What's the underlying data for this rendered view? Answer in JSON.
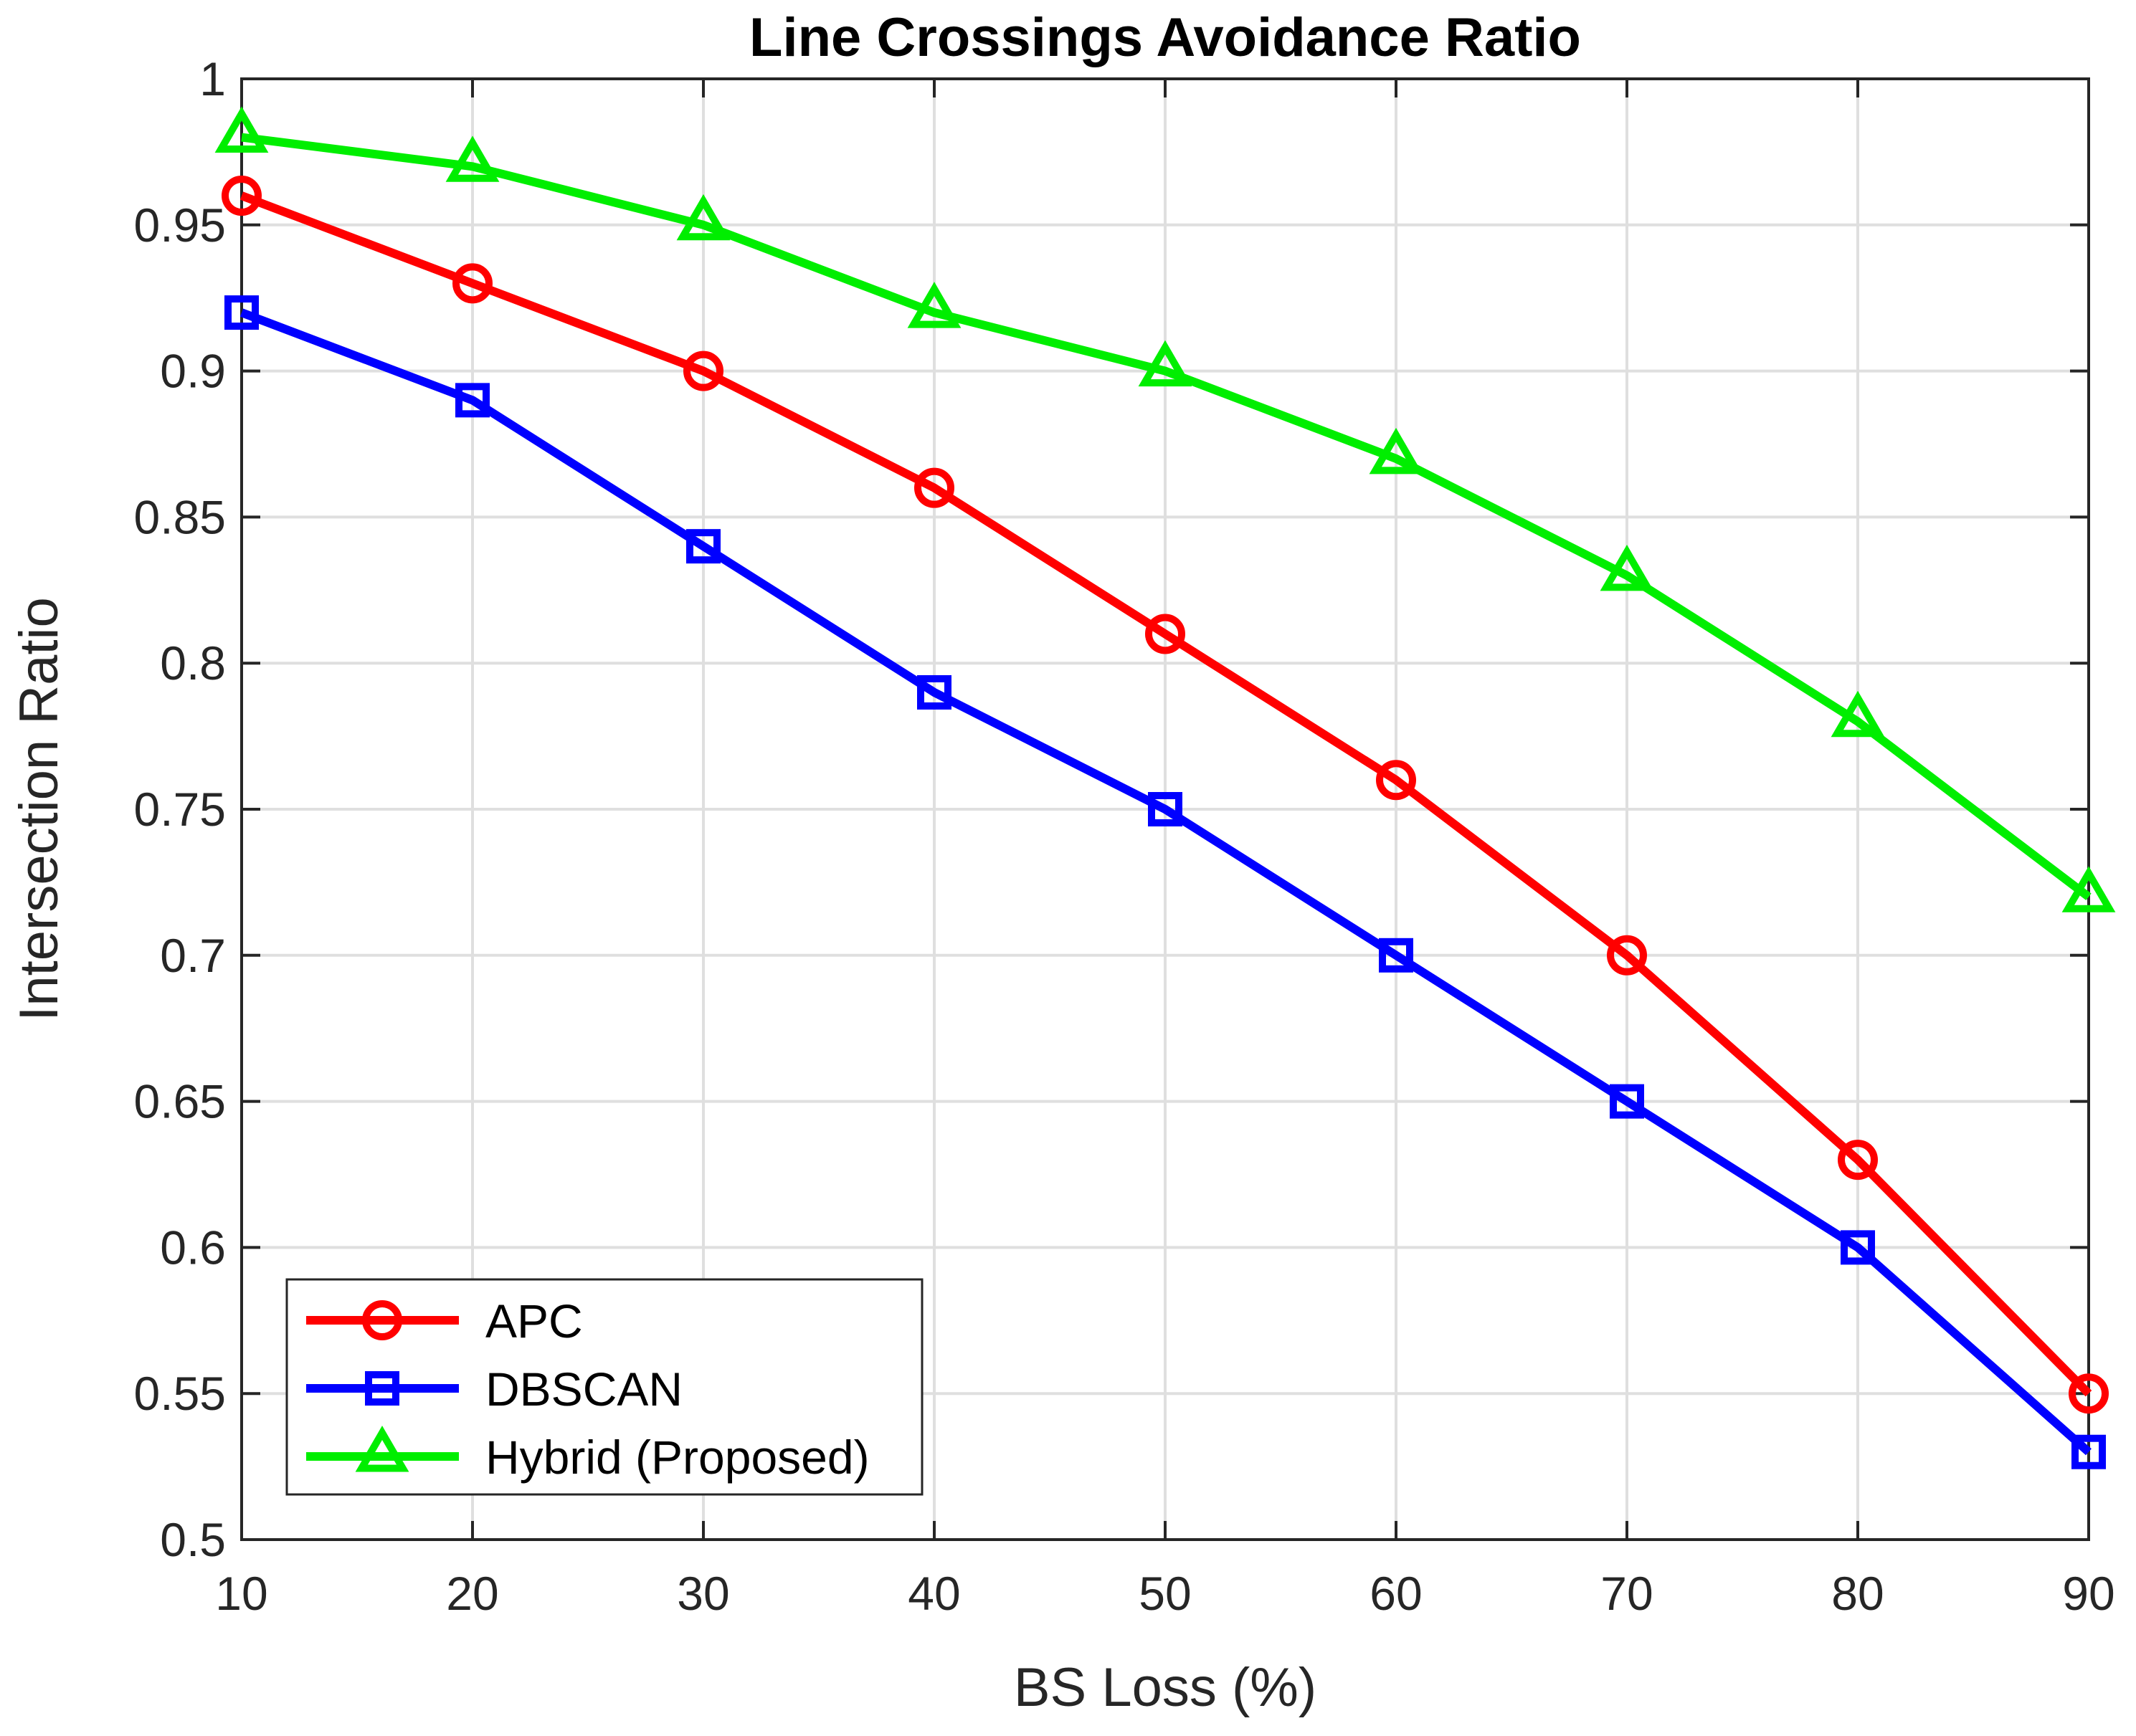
{
  "chart_data": {
    "type": "line",
    "title": "Line Crossings Avoidance Ratio",
    "xlabel": "BS Loss (%)",
    "ylabel": "Intersection Ratio",
    "x": [
      10,
      20,
      30,
      40,
      50,
      60,
      70,
      80,
      90
    ],
    "xlim": [
      10,
      90
    ],
    "ylim": [
      0.5,
      1
    ],
    "xticks": [
      "10",
      "20",
      "30",
      "40",
      "50",
      "60",
      "70",
      "80",
      "90"
    ],
    "yticks": [
      "0.5",
      "0.55",
      "0.6",
      "0.65",
      "0.7",
      "0.75",
      "0.8",
      "0.85",
      "0.9",
      "0.95",
      "1"
    ],
    "grid": true,
    "legend_position": "bottom-left",
    "series": [
      {
        "name": "APC",
        "color": "#ff0000",
        "marker": "circle",
        "values": [
          0.96,
          0.93,
          0.9,
          0.86,
          0.81,
          0.76,
          0.7,
          0.63,
          0.55
        ]
      },
      {
        "name": "DBSCAN",
        "color": "#0000ff",
        "marker": "square",
        "values": [
          0.92,
          0.89,
          0.84,
          0.79,
          0.75,
          0.7,
          0.65,
          0.6,
          0.53
        ]
      },
      {
        "name": "Hybrid (Proposed)",
        "color": "#00ee00",
        "marker": "triangle",
        "values": [
          0.98,
          0.97,
          0.95,
          0.92,
          0.9,
          0.87,
          0.83,
          0.78,
          0.72
        ]
      }
    ]
  }
}
